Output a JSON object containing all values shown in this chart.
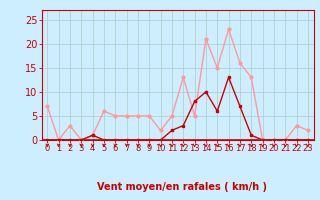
{
  "x": [
    0,
    1,
    2,
    3,
    4,
    5,
    6,
    7,
    8,
    9,
    10,
    11,
    12,
    13,
    14,
    15,
    16,
    17,
    18,
    19,
    20,
    21,
    22,
    23
  ],
  "line1_y": [
    7,
    0,
    3,
    0,
    1,
    6,
    5,
    5,
    5,
    5,
    2,
    5,
    13,
    5,
    21,
    15,
    23,
    16,
    13,
    0,
    0,
    0,
    3,
    2
  ],
  "line2_y": [
    0,
    0,
    0,
    0,
    1,
    0,
    0,
    0,
    0,
    0,
    0,
    2,
    3,
    8,
    10,
    6,
    13,
    7,
    1,
    0,
    0,
    0,
    0,
    0
  ],
  "line1_color": "#ff9999",
  "line2_color": "#cc0000",
  "xlabel": "Vent moyen/en rafales ( km/h )",
  "ylim": [
    0,
    27
  ],
  "xlim": [
    -0.5,
    23.5
  ],
  "yticks": [
    0,
    5,
    10,
    15,
    20,
    25
  ],
  "xticks": [
    0,
    1,
    2,
    3,
    4,
    5,
    6,
    7,
    8,
    9,
    10,
    11,
    12,
    13,
    14,
    15,
    16,
    17,
    18,
    19,
    20,
    21,
    22,
    23
  ],
  "bg_color": "#cceeff",
  "grid_color": "#aacccc",
  "tick_label_color": "#cc0000",
  "axis_line_color": "#cc0000",
  "xlabel_color": "#cc0000",
  "xlabel_fontsize": 7,
  "tick_fontsize": 6,
  "ytick_fontsize": 7
}
